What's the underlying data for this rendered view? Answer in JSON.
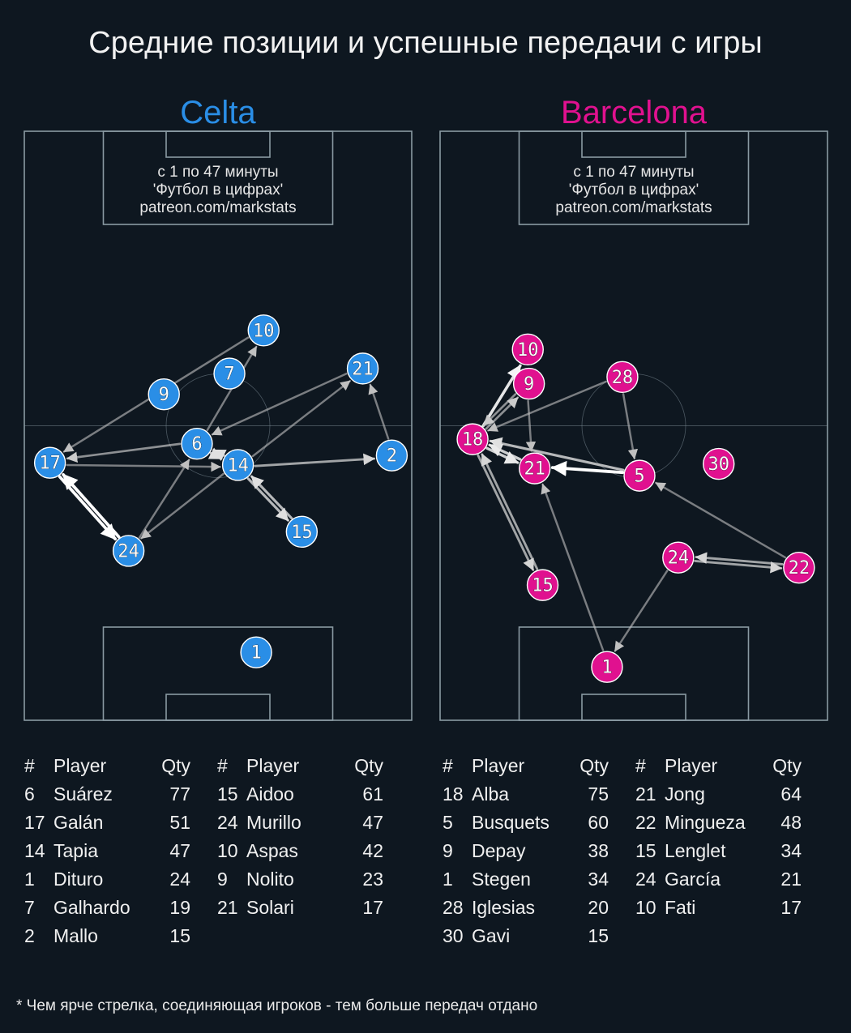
{
  "title": "Средние позиции и успешные передачи с игры",
  "footnote": "* Чем ярче стрелка, соединяющая игроков - тем больше передач отдано",
  "colors": {
    "background": "#0e1720",
    "pitch_lines": "#8a9aa3",
    "celta": "#2a8ee6",
    "barcelona": "#e0118f",
    "arrow": "#b8b8b8"
  },
  "note_lines": [
    "с 1 по 47 минуты",
    "'Футбол в цифрах'",
    "patreon.com/markstats"
  ],
  "table_headers": {
    "num": "#",
    "player": "Player",
    "qty": "Qty"
  },
  "chart_data": [
    {
      "type": "pass-network",
      "team": "Celta",
      "color": "#2a8ee6",
      "pitch": {
        "length": 105,
        "width": 68,
        "attack_direction": "up"
      },
      "nodes": [
        {
          "num": "10",
          "x": 42.0,
          "y": 69.5
        },
        {
          "num": "7",
          "x": 36.0,
          "y": 61.8
        },
        {
          "num": "9",
          "x": 24.5,
          "y": 58.1
        },
        {
          "num": "21",
          "x": 59.4,
          "y": 62.7
        },
        {
          "num": "6",
          "x": 30.3,
          "y": 49.3
        },
        {
          "num": "17",
          "x": 4.5,
          "y": 45.9
        },
        {
          "num": "14",
          "x": 37.5,
          "y": 45.5
        },
        {
          "num": "2",
          "x": 64.5,
          "y": 47.2
        },
        {
          "num": "15",
          "x": 48.7,
          "y": 33.6
        },
        {
          "num": "24",
          "x": 18.3,
          "y": 30.2
        },
        {
          "num": "1",
          "x": 40.7,
          "y": 12.1
        }
      ],
      "passes": [
        {
          "from": "17",
          "to": "24",
          "intensity": 1.0
        },
        {
          "from": "24",
          "to": "17",
          "intensity": 1.0
        },
        {
          "from": "14",
          "to": "15",
          "intensity": 0.7
        },
        {
          "from": "15",
          "to": "14",
          "intensity": 0.7
        },
        {
          "from": "14",
          "to": "2",
          "intensity": 0.6
        },
        {
          "from": "6",
          "to": "14",
          "intensity": 0.7
        },
        {
          "from": "14",
          "to": "6",
          "intensity": 0.7
        },
        {
          "from": "10",
          "to": "17",
          "intensity": 0.4
        },
        {
          "from": "6",
          "to": "10",
          "intensity": 0.4
        },
        {
          "from": "21",
          "to": "6",
          "intensity": 0.4
        },
        {
          "from": "14",
          "to": "21",
          "intensity": 0.4
        },
        {
          "from": "6",
          "to": "17",
          "intensity": 0.5
        },
        {
          "from": "17",
          "to": "14",
          "intensity": 0.4
        },
        {
          "from": "24",
          "to": "6",
          "intensity": 0.4
        },
        {
          "from": "14",
          "to": "24",
          "intensity": 0.4
        },
        {
          "from": "2",
          "to": "21",
          "intensity": 0.4
        }
      ],
      "players": [
        {
          "num": "6",
          "name": "Suárez",
          "qty": 77
        },
        {
          "num": "17",
          "name": "Galán",
          "qty": 51
        },
        {
          "num": "14",
          "name": "Tapia",
          "qty": 47
        },
        {
          "num": "1",
          "name": "Dituro",
          "qty": 24
        },
        {
          "num": "7",
          "name": "Galhardo",
          "qty": 19
        },
        {
          "num": "2",
          "name": "Mallo",
          "qty": 15
        },
        {
          "num": "15",
          "name": "Aidoo",
          "qty": 61
        },
        {
          "num": "24",
          "name": "Murillo",
          "qty": 47
        },
        {
          "num": "10",
          "name": "Aspas",
          "qty": 42
        },
        {
          "num": "9",
          "name": "Nolito",
          "qty": 23
        },
        {
          "num": "21",
          "name": "Solari",
          "qty": 17
        }
      ]
    },
    {
      "type": "pass-network",
      "team": "Barcelona",
      "color": "#e0118f",
      "pitch": {
        "length": 105,
        "width": 68,
        "attack_direction": "up"
      },
      "nodes": [
        {
          "num": "10",
          "x": 15.4,
          "y": 66.1
        },
        {
          "num": "9",
          "x": 15.6,
          "y": 60.0
        },
        {
          "num": "28",
          "x": 32.0,
          "y": 61.2
        },
        {
          "num": "18",
          "x": 5.7,
          "y": 50.1
        },
        {
          "num": "21",
          "x": 16.6,
          "y": 44.9
        },
        {
          "num": "5",
          "x": 35.0,
          "y": 43.6
        },
        {
          "num": "30",
          "x": 48.9,
          "y": 45.7
        },
        {
          "num": "24",
          "x": 41.8,
          "y": 29.0
        },
        {
          "num": "22",
          "x": 63.0,
          "y": 27.2
        },
        {
          "num": "15",
          "x": 18.0,
          "y": 24.1
        },
        {
          "num": "1",
          "x": 29.3,
          "y": 9.5
        }
      ],
      "passes": [
        {
          "from": "5",
          "to": "21",
          "intensity": 1.0
        },
        {
          "from": "18",
          "to": "10",
          "intensity": 0.9
        },
        {
          "from": "18",
          "to": "21",
          "intensity": 0.8
        },
        {
          "from": "21",
          "to": "18",
          "intensity": 0.8
        },
        {
          "from": "5",
          "to": "18",
          "intensity": 0.7
        },
        {
          "from": "18",
          "to": "15",
          "intensity": 0.6
        },
        {
          "from": "15",
          "to": "18",
          "intensity": 0.6
        },
        {
          "from": "9",
          "to": "18",
          "intensity": 0.5
        },
        {
          "from": "18",
          "to": "9",
          "intensity": 0.5
        },
        {
          "from": "28",
          "to": "18",
          "intensity": 0.4
        },
        {
          "from": "28",
          "to": "5",
          "intensity": 0.4
        },
        {
          "from": "9",
          "to": "21",
          "intensity": 0.4
        },
        {
          "from": "1",
          "to": "21",
          "intensity": 0.4
        },
        {
          "from": "22",
          "to": "5",
          "intensity": 0.4
        },
        {
          "from": "22",
          "to": "24",
          "intensity": 0.6
        },
        {
          "from": "24",
          "to": "22",
          "intensity": 0.6
        },
        {
          "from": "24",
          "to": "1",
          "intensity": 0.4
        }
      ],
      "players": [
        {
          "num": "18",
          "name": "Alba",
          "qty": 75
        },
        {
          "num": "5",
          "name": "Busquets",
          "qty": 60
        },
        {
          "num": "9",
          "name": "Depay",
          "qty": 38
        },
        {
          "num": "1",
          "name": "Stegen",
          "qty": 34
        },
        {
          "num": "28",
          "name": "Iglesias",
          "qty": 20
        },
        {
          "num": "30",
          "name": "Gavi",
          "qty": 15
        },
        {
          "num": "21",
          "name": "Jong",
          "qty": 64
        },
        {
          "num": "22",
          "name": "Mingueza",
          "qty": 48
        },
        {
          "num": "15",
          "name": "Lenglet",
          "qty": 34
        },
        {
          "num": "24",
          "name": "García",
          "qty": 21
        },
        {
          "num": "10",
          "name": "Fati",
          "qty": 17
        }
      ]
    }
  ]
}
